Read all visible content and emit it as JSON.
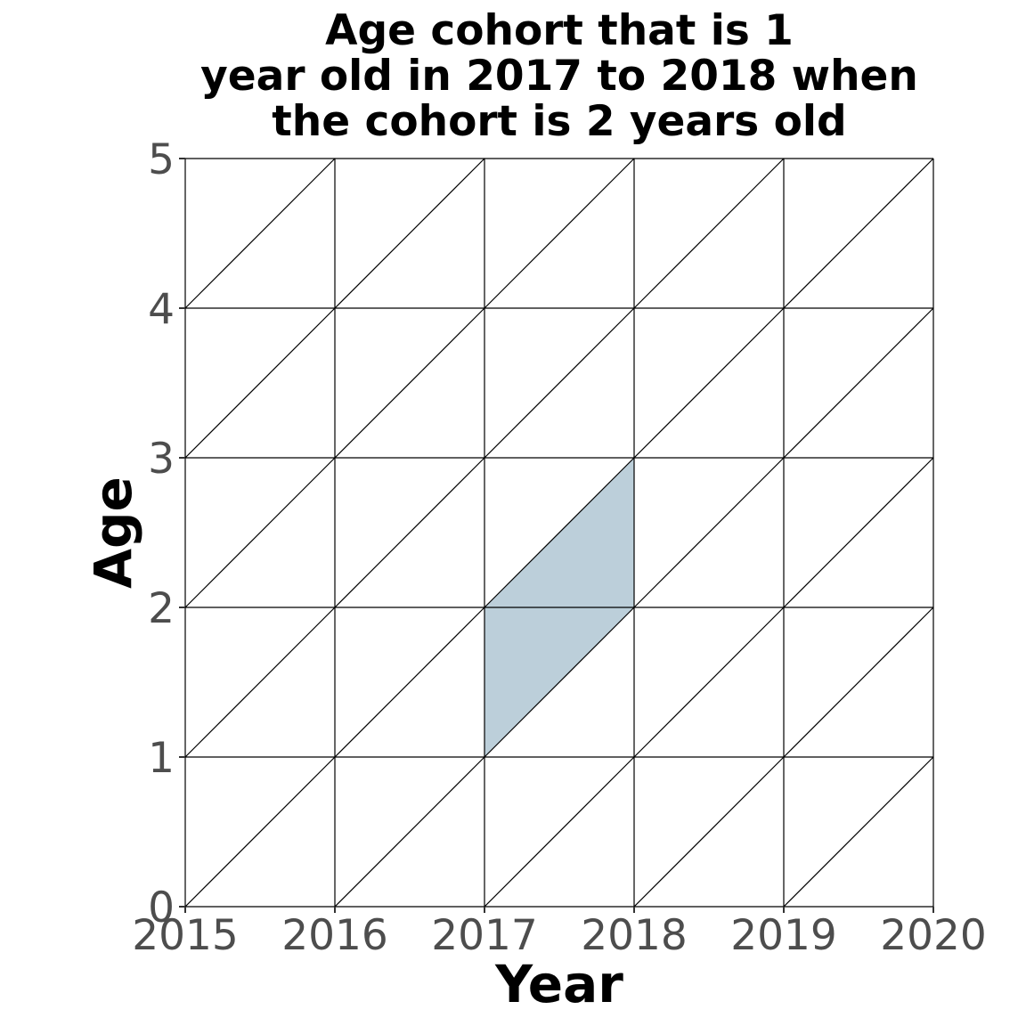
{
  "chart_data": {
    "type": "lexis-diagram",
    "title_lines": [
      "Age cohort that is 1",
      "year old in 2017 to 2018 when",
      "the cohort is 2 years old"
    ],
    "xlabel": "Year",
    "ylabel": "Age",
    "xlim": [
      2015,
      2020
    ],
    "ylim": [
      0,
      5
    ],
    "x_ticks": [
      2015,
      2016,
      2017,
      2018,
      2019,
      2020
    ],
    "y_ticks": [
      0,
      1,
      2,
      3,
      4,
      5
    ],
    "diagonal_lines": true,
    "grid": true,
    "highlight": {
      "vertices": [
        [
          2017,
          1
        ],
        [
          2017,
          2
        ],
        [
          2018,
          3
        ],
        [
          2018,
          2
        ]
      ],
      "fill": "#bccfda"
    }
  }
}
